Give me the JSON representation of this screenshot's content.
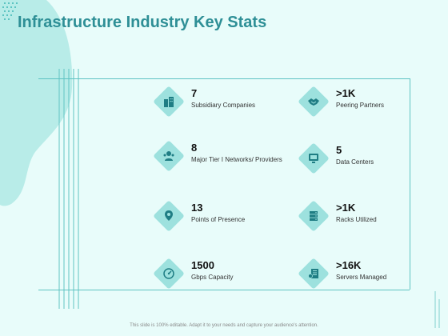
{
  "slide": {
    "title": "Infrastructure Industry Key Stats",
    "footer": "This slide is 100% editable. Adapt it to your needs and capture your audience's attention."
  },
  "stats": [
    {
      "value": "7",
      "label": "Subsidiary Companies",
      "icon": "office-buildings-icon"
    },
    {
      "value": ">1K",
      "label": "Peering Partners",
      "icon": "handshake-icon"
    },
    {
      "value": "8",
      "label": "Major Tier I Networks/ Providers",
      "icon": "network-providers-icon"
    },
    {
      "value": "5",
      "label": "Data Centers",
      "icon": "data-center-icon"
    },
    {
      "value": "13",
      "label": "Points of Presence",
      "icon": "location-pin-icon"
    },
    {
      "value": ">1K",
      "label": "Racks Utilized",
      "icon": "server-rack-icon"
    },
    {
      "value": "1500",
      "label": "Gbps Capacity",
      "icon": "speedometer-icon"
    },
    {
      "value": ">16K",
      "label": "Servers Managed",
      "icon": "server-managed-icon"
    }
  ],
  "colors": {
    "accent": "#2e8f96",
    "background": "#e8fcfa",
    "blob": "#b8ece8",
    "diamond": "#9de1de"
  }
}
